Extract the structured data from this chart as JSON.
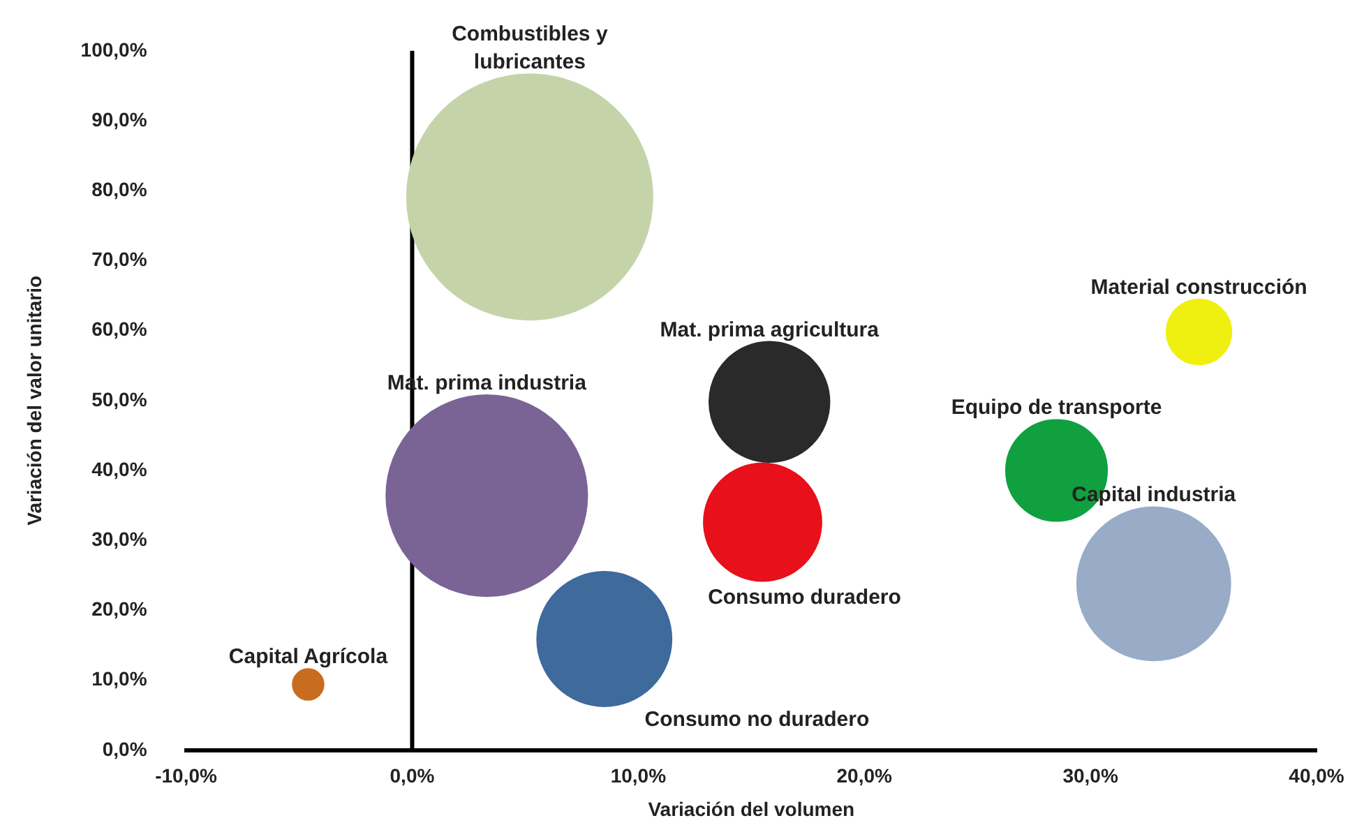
{
  "chart_data": {
    "type": "bubble",
    "xlabel": "Variación del volumen",
    "ylabel": "Variación del valor unitario",
    "legend": false,
    "grid": false,
    "xlim": [
      -10,
      40
    ],
    "ylim": [
      0,
      100
    ],
    "xticks": [
      {
        "value": -10,
        "label": "-10,0%"
      },
      {
        "value": 0,
        "label": "0,0%"
      },
      {
        "value": 10,
        "label": "10,0%"
      },
      {
        "value": 20,
        "label": "20,0%"
      },
      {
        "value": 30,
        "label": "30,0%"
      },
      {
        "value": 40,
        "label": "40,0%"
      }
    ],
    "yticks": [
      {
        "value": 0,
        "label": "0,0%"
      },
      {
        "value": 10,
        "label": "10,0%"
      },
      {
        "value": 20,
        "label": "20,0%"
      },
      {
        "value": 30,
        "label": "30,0%"
      },
      {
        "value": 40,
        "label": "40,0%"
      },
      {
        "value": 50,
        "label": "50,0%"
      },
      {
        "value": 60,
        "label": "60,0%"
      },
      {
        "value": 70,
        "label": "70,0%"
      },
      {
        "value": 80,
        "label": "80,0%"
      },
      {
        "value": 90,
        "label": "90,0%"
      },
      {
        "value": 100,
        "label": "100,0%"
      }
    ],
    "ref_lines": [
      {
        "axis": "x",
        "value": 0,
        "color": "#000000"
      }
    ],
    "series": [
      {
        "name": "Combustibles y lubricantes",
        "color": "#c4d4a8",
        "x": [
          5.2
        ],
        "values": [
          79.1
        ],
        "sizes": [
          1
        ]
      },
      {
        "name": "Mat. prima industria",
        "color": "#7a6496",
        "x": [
          3.3
        ],
        "values": [
          36.4
        ],
        "sizes": [
          0.67
        ]
      },
      {
        "name": "Mat. prima agricultura",
        "color": "#2a2a2a",
        "x": [
          15.8
        ],
        "values": [
          49.8
        ],
        "sizes": [
          0.24
        ]
      },
      {
        "name": "Consumo duradero",
        "color": "#e8101a",
        "x": [
          15.5
        ],
        "values": [
          32.6
        ],
        "sizes": [
          0.23
        ]
      },
      {
        "name": "Consumo no duradero",
        "color": "#3e6a9c",
        "x": [
          8.5
        ],
        "values": [
          15.9
        ],
        "sizes": [
          0.3
        ]
      },
      {
        "name": "Capital Agrícola",
        "color": "#c86c20",
        "x": [
          -4.6
        ],
        "values": [
          9.4
        ],
        "sizes": [
          0.016
        ]
      },
      {
        "name": "Equipo de transporte",
        "color": "#10a040",
        "x": [
          28.5
        ],
        "values": [
          40
        ],
        "sizes": [
          0.17
        ]
      },
      {
        "name": "Material construcción",
        "color": "#f0f010",
        "x": [
          34.8
        ],
        "values": [
          59.8
        ],
        "sizes": [
          0.07
        ]
      },
      {
        "name": "Capital industria",
        "color": "#98acc8",
        "x": [
          32.8
        ],
        "values": [
          23.8
        ],
        "sizes": [
          0.39
        ]
      }
    ]
  }
}
